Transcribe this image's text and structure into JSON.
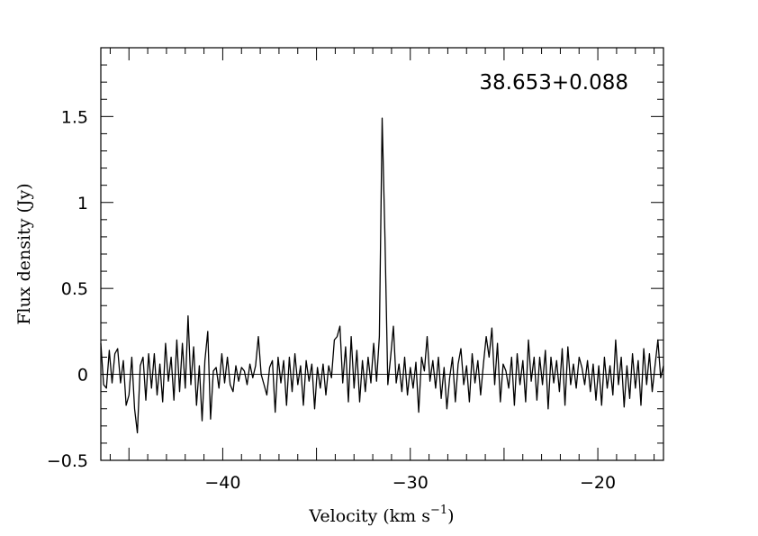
{
  "chart_data": {
    "type": "line",
    "annotation": "38.653+0.088",
    "xlabel": "Velocity (km s",
    "xlabel_sup": "−1",
    "xlabel_close": ")",
    "ylabel": "Flux density (Jy)",
    "xlim": [
      -46.5,
      -16.5
    ],
    "ylim": [
      -0.5,
      1.9
    ],
    "x_ticks": [
      -40,
      -30,
      -20
    ],
    "x_tick_labels": [
      "−40",
      "−30",
      "−20"
    ],
    "y_ticks": [
      -0.5,
      0,
      0.5,
      1,
      1.5
    ],
    "y_tick_labels": [
      "−0.5",
      "0",
      "0.5",
      "1",
      "1.5"
    ],
    "series": [
      {
        "points": [
          [
            -46.5,
            0.18
          ],
          [
            -46.35,
            -0.06
          ],
          [
            -46.2,
            -0.08
          ],
          [
            -46.05,
            0.14
          ],
          [
            -45.9,
            -0.05
          ],
          [
            -45.75,
            0.12
          ],
          [
            -45.6,
            0.15
          ],
          [
            -45.45,
            -0.05
          ],
          [
            -45.3,
            0.08
          ],
          [
            -45.15,
            -0.18
          ],
          [
            -45.0,
            -0.12
          ],
          [
            -44.85,
            0.1
          ],
          [
            -44.7,
            -0.2
          ],
          [
            -44.55,
            -0.34
          ],
          [
            -44.4,
            0.05
          ],
          [
            -44.25,
            0.1
          ],
          [
            -44.1,
            -0.15
          ],
          [
            -43.95,
            0.12
          ],
          [
            -43.8,
            -0.08
          ],
          [
            -43.65,
            0.12
          ],
          [
            -43.5,
            -0.12
          ],
          [
            -43.35,
            0.06
          ],
          [
            -43.2,
            -0.16
          ],
          [
            -43.05,
            0.18
          ],
          [
            -42.9,
            -0.04
          ],
          [
            -42.75,
            0.1
          ],
          [
            -42.6,
            -0.15
          ],
          [
            -42.45,
            0.2
          ],
          [
            -42.3,
            -0.1
          ],
          [
            -42.15,
            0.18
          ],
          [
            -42.0,
            -0.08
          ],
          [
            -41.85,
            0.34
          ],
          [
            -41.7,
            -0.06
          ],
          [
            -41.55,
            0.16
          ],
          [
            -41.4,
            -0.18
          ],
          [
            -41.25,
            0.05
          ],
          [
            -41.1,
            -0.27
          ],
          [
            -40.95,
            0.08
          ],
          [
            -40.8,
            0.25
          ],
          [
            -40.65,
            -0.26
          ],
          [
            -40.5,
            0.02
          ],
          [
            -40.35,
            0.04
          ],
          [
            -40.2,
            -0.08
          ],
          [
            -40.05,
            0.12
          ],
          [
            -39.9,
            -0.05
          ],
          [
            -39.75,
            0.1
          ],
          [
            -39.6,
            -0.06
          ],
          [
            -39.45,
            -0.1
          ],
          [
            -39.3,
            0.05
          ],
          [
            -39.15,
            -0.04
          ],
          [
            -39.0,
            0.04
          ],
          [
            -38.85,
            0.02
          ],
          [
            -38.7,
            -0.06
          ],
          [
            -38.55,
            0.06
          ],
          [
            -38.4,
            -0.02
          ],
          [
            -38.25,
            0.05
          ],
          [
            -38.1,
            0.22
          ],
          [
            -37.95,
            0.0
          ],
          [
            -37.8,
            -0.06
          ],
          [
            -37.65,
            -0.12
          ],
          [
            -37.5,
            0.04
          ],
          [
            -37.35,
            0.08
          ],
          [
            -37.2,
            -0.22
          ],
          [
            -37.05,
            0.1
          ],
          [
            -36.9,
            -0.05
          ],
          [
            -36.75,
            0.08
          ],
          [
            -36.6,
            -0.18
          ],
          [
            -36.45,
            0.1
          ],
          [
            -36.3,
            -0.1
          ],
          [
            -36.15,
            0.12
          ],
          [
            -36.0,
            -0.06
          ],
          [
            -35.85,
            0.05
          ],
          [
            -35.7,
            -0.18
          ],
          [
            -35.55,
            0.08
          ],
          [
            -35.4,
            -0.04
          ],
          [
            -35.25,
            0.06
          ],
          [
            -35.1,
            -0.2
          ],
          [
            -34.95,
            0.04
          ],
          [
            -34.8,
            -0.08
          ],
          [
            -34.65,
            0.06
          ],
          [
            -34.5,
            -0.12
          ],
          [
            -34.35,
            0.05
          ],
          [
            -34.2,
            -0.02
          ],
          [
            -34.05,
            0.2
          ],
          [
            -33.9,
            0.22
          ],
          [
            -33.75,
            0.28
          ],
          [
            -33.6,
            -0.05
          ],
          [
            -33.45,
            0.16
          ],
          [
            -33.3,
            -0.16
          ],
          [
            -33.15,
            0.22
          ],
          [
            -33.0,
            -0.08
          ],
          [
            -32.85,
            0.14
          ],
          [
            -32.7,
            -0.16
          ],
          [
            -32.55,
            0.08
          ],
          [
            -32.4,
            -0.1
          ],
          [
            -32.25,
            0.1
          ],
          [
            -32.1,
            -0.05
          ],
          [
            -31.95,
            0.18
          ],
          [
            -31.8,
            -0.04
          ],
          [
            -31.65,
            0.22
          ],
          [
            -31.5,
            1.49
          ],
          [
            -31.35,
            0.8
          ],
          [
            -31.2,
            -0.06
          ],
          [
            -31.05,
            0.1
          ],
          [
            -30.9,
            0.28
          ],
          [
            -30.75,
            -0.05
          ],
          [
            -30.6,
            0.06
          ],
          [
            -30.45,
            -0.1
          ],
          [
            -30.3,
            0.1
          ],
          [
            -30.15,
            -0.12
          ],
          [
            -30.0,
            0.04
          ],
          [
            -29.85,
            -0.08
          ],
          [
            -29.7,
            0.07
          ],
          [
            -29.55,
            -0.22
          ],
          [
            -29.4,
            0.1
          ],
          [
            -29.25,
            0.02
          ],
          [
            -29.1,
            0.22
          ],
          [
            -28.95,
            -0.04
          ],
          [
            -28.8,
            0.08
          ],
          [
            -28.65,
            -0.08
          ],
          [
            -28.5,
            0.1
          ],
          [
            -28.35,
            -0.14
          ],
          [
            -28.2,
            0.04
          ],
          [
            -28.05,
            -0.2
          ],
          [
            -27.9,
            -0.02
          ],
          [
            -27.75,
            0.1
          ],
          [
            -27.6,
            -0.16
          ],
          [
            -27.45,
            0.06
          ],
          [
            -27.3,
            0.15
          ],
          [
            -27.15,
            -0.06
          ],
          [
            -27.0,
            0.05
          ],
          [
            -26.85,
            -0.16
          ],
          [
            -26.7,
            0.12
          ],
          [
            -26.55,
            -0.05
          ],
          [
            -26.4,
            0.08
          ],
          [
            -26.25,
            -0.12
          ],
          [
            -26.1,
            0.06
          ],
          [
            -25.95,
            0.22
          ],
          [
            -25.8,
            0.1
          ],
          [
            -25.65,
            0.27
          ],
          [
            -25.5,
            -0.06
          ],
          [
            -25.35,
            0.18
          ],
          [
            -25.2,
            -0.16
          ],
          [
            -25.05,
            0.06
          ],
          [
            -24.9,
            0.02
          ],
          [
            -24.75,
            -0.08
          ],
          [
            -24.6,
            0.1
          ],
          [
            -24.45,
            -0.18
          ],
          [
            -24.3,
            0.12
          ],
          [
            -24.15,
            -0.06
          ],
          [
            -24.0,
            0.08
          ],
          [
            -23.85,
            -0.16
          ],
          [
            -23.7,
            0.2
          ],
          [
            -23.55,
            -0.04
          ],
          [
            -23.4,
            0.1
          ],
          [
            -23.25,
            -0.15
          ],
          [
            -23.1,
            0.1
          ],
          [
            -22.95,
            -0.06
          ],
          [
            -22.8,
            0.14
          ],
          [
            -22.65,
            -0.2
          ],
          [
            -22.5,
            0.1
          ],
          [
            -22.35,
            -0.05
          ],
          [
            -22.2,
            0.08
          ],
          [
            -22.05,
            -0.1
          ],
          [
            -21.9,
            0.15
          ],
          [
            -21.75,
            -0.18
          ],
          [
            -21.6,
            0.16
          ],
          [
            -21.45,
            -0.06
          ],
          [
            -21.3,
            0.06
          ],
          [
            -21.15,
            -0.08
          ],
          [
            -21.0,
            0.1
          ],
          [
            -20.85,
            0.04
          ],
          [
            -20.7,
            -0.06
          ],
          [
            -20.55,
            0.08
          ],
          [
            -20.4,
            -0.1
          ],
          [
            -20.25,
            0.06
          ],
          [
            -20.1,
            -0.15
          ],
          [
            -19.95,
            0.05
          ],
          [
            -19.8,
            -0.18
          ],
          [
            -19.65,
            0.1
          ],
          [
            -19.5,
            -0.08
          ],
          [
            -19.35,
            0.05
          ],
          [
            -19.2,
            -0.12
          ],
          [
            -19.05,
            0.2
          ],
          [
            -18.9,
            -0.06
          ],
          [
            -18.75,
            0.1
          ],
          [
            -18.6,
            -0.19
          ],
          [
            -18.45,
            0.05
          ],
          [
            -18.3,
            -0.14
          ],
          [
            -18.15,
            0.12
          ],
          [
            -18.0,
            -0.08
          ],
          [
            -17.85,
            0.08
          ],
          [
            -17.7,
            -0.18
          ],
          [
            -17.55,
            0.15
          ],
          [
            -17.4,
            -0.06
          ],
          [
            -17.25,
            0.12
          ],
          [
            -17.1,
            -0.1
          ],
          [
            -16.95,
            0.05
          ],
          [
            -16.8,
            0.2
          ],
          [
            -16.65,
            -0.02
          ],
          [
            -16.5,
            0.05
          ]
        ]
      }
    ]
  }
}
